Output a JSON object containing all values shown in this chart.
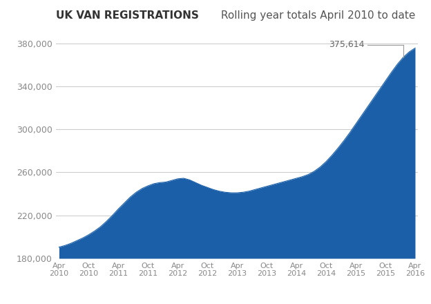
{
  "title_bold": "UK VAN REGISTRATIONS",
  "title_normal": " Rolling year totals April 2010 to date",
  "fill_color": "#1a5fa8",
  "background_color": "#ffffff",
  "annotation_value": "375,614",
  "ylim": [
    180000,
    392000
  ],
  "yticks": [
    180000,
    220000,
    260000,
    300000,
    340000,
    380000
  ],
  "ytick_labels": [
    "180,000",
    "220,000",
    "260,000",
    "300,000",
    "340,000",
    "380,000"
  ],
  "xtick_labels": [
    "Apr\n2010",
    "Oct\n2010",
    "Apr\n2011",
    "Oct\n2011",
    "Apr\n2012",
    "Oct\n2012",
    "Apr\n2013",
    "Oct\n2013",
    "Apr\n2014",
    "Oct\n2014",
    "Apr\n2015",
    "Oct\n2015",
    "Apr\n2016"
  ],
  "grid_color": "#cccccc",
  "tick_color": "#888888",
  "data": [
    190500,
    192000,
    194000,
    196500,
    199000,
    202000,
    205500,
    209500,
    214500,
    220000,
    226000,
    231500,
    237000,
    241500,
    245000,
    247500,
    249500,
    250500,
    251000,
    252500,
    254000,
    254500,
    253000,
    250500,
    248000,
    246000,
    244000,
    242500,
    241500,
    241000,
    241000,
    241500,
    242500,
    244000,
    245500,
    247000,
    248500,
    250000,
    251500,
    253000,
    254500,
    256000,
    258000,
    261000,
    265000,
    270000,
    276000,
    282500,
    289500,
    297000,
    305000,
    313000,
    321000,
    329000,
    337000,
    345000,
    353000,
    360500,
    367000,
    372000,
    375614
  ]
}
